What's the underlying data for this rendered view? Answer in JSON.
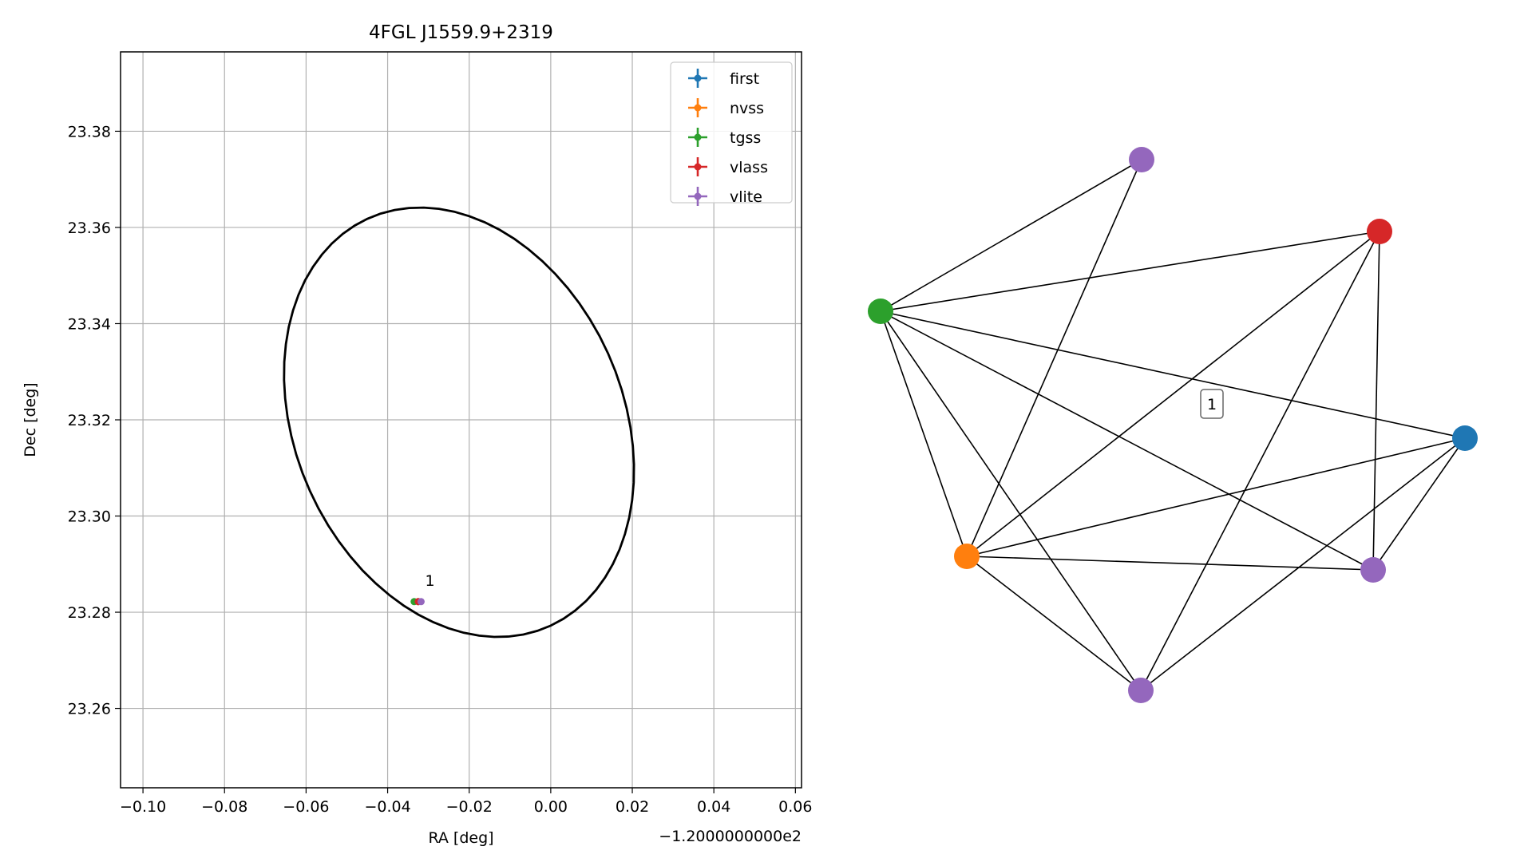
{
  "chart_data": [
    {
      "type": "scatter",
      "title": "4FGL J1559.9+2319",
      "xlabel": "RA [deg]",
      "ylabel": "Dec [deg]",
      "x_offset_label": "−1.2000000000e2",
      "xlim": [
        -0.1055,
        0.0615
      ],
      "ylim": [
        23.2435,
        23.3965
      ],
      "xticks": [
        -0.1,
        -0.08,
        -0.06,
        -0.04,
        -0.02,
        0.0,
        0.02,
        0.04,
        0.06
      ],
      "xtick_labels": [
        "−0.10",
        "−0.08",
        "−0.06",
        "−0.04",
        "−0.02",
        "0.00",
        "0.02",
        "0.04",
        "0.06"
      ],
      "yticks": [
        23.26,
        23.28,
        23.3,
        23.32,
        23.34,
        23.36,
        23.38
      ],
      "ytick_labels": [
        "23.26",
        "23.28",
        "23.30",
        "23.32",
        "23.34",
        "23.36",
        "23.38"
      ],
      "grid": true,
      "legend_position": "top-right",
      "ellipse": {
        "center": [
          -0.0225,
          23.3195
        ],
        "semi_axis_a": 0.0485,
        "semi_axis_b": 0.0385,
        "rotation_deg": -50
      },
      "series": [
        {
          "name": "first",
          "color": "#1f77b4",
          "points": [
            [
              -0.0325,
              23.2822
            ]
          ]
        },
        {
          "name": "nvss",
          "color": "#ff7f0e",
          "points": [
            [
              -0.0325,
              23.2822
            ]
          ]
        },
        {
          "name": "tgss",
          "color": "#2ca02c",
          "points": [
            [
              -0.0335,
              23.2822
            ]
          ]
        },
        {
          "name": "vlass",
          "color": "#d62728",
          "points": [
            [
              -0.0325,
              23.2822
            ]
          ]
        },
        {
          "name": "vlite",
          "color": "#9467bd",
          "points": [
            [
              -0.0318,
              23.2822
            ]
          ]
        }
      ],
      "annotations": [
        {
          "text": "1",
          "x": -0.0308,
          "y": 23.2855
        }
      ]
    },
    {
      "type": "network",
      "nodes": [
        {
          "id": "vlite_top",
          "survey": "vlite",
          "color": "#9467bd"
        },
        {
          "id": "vlass",
          "survey": "vlass",
          "color": "#d62728"
        },
        {
          "id": "tgss",
          "survey": "tgss",
          "color": "#2ca02c"
        },
        {
          "id": "first",
          "survey": "first",
          "color": "#1f77b4"
        },
        {
          "id": "nvss",
          "survey": "nvss",
          "color": "#ff7f0e"
        },
        {
          "id": "vlite_right",
          "survey": "vlite",
          "color": "#9467bd"
        },
        {
          "id": "vlite_bottom",
          "survey": "vlite",
          "color": "#9467bd"
        }
      ],
      "edges": [
        [
          "tgss",
          "vlite_top"
        ],
        [
          "tgss",
          "vlass"
        ],
        [
          "tgss",
          "first"
        ],
        [
          "tgss",
          "nvss"
        ],
        [
          "tgss",
          "vlite_right"
        ],
        [
          "tgss",
          "vlite_bottom"
        ],
        [
          "vlite_top",
          "nvss"
        ],
        [
          "vlass",
          "nvss"
        ],
        [
          "vlass",
          "vlite_bottom"
        ],
        [
          "vlass",
          "vlite_right"
        ],
        [
          "first",
          "nvss"
        ],
        [
          "first",
          "vlite_right"
        ],
        [
          "first",
          "vlite_bottom"
        ],
        [
          "nvss",
          "vlite_right"
        ],
        [
          "nvss",
          "vlite_bottom"
        ]
      ],
      "cluster_label": "1"
    }
  ]
}
